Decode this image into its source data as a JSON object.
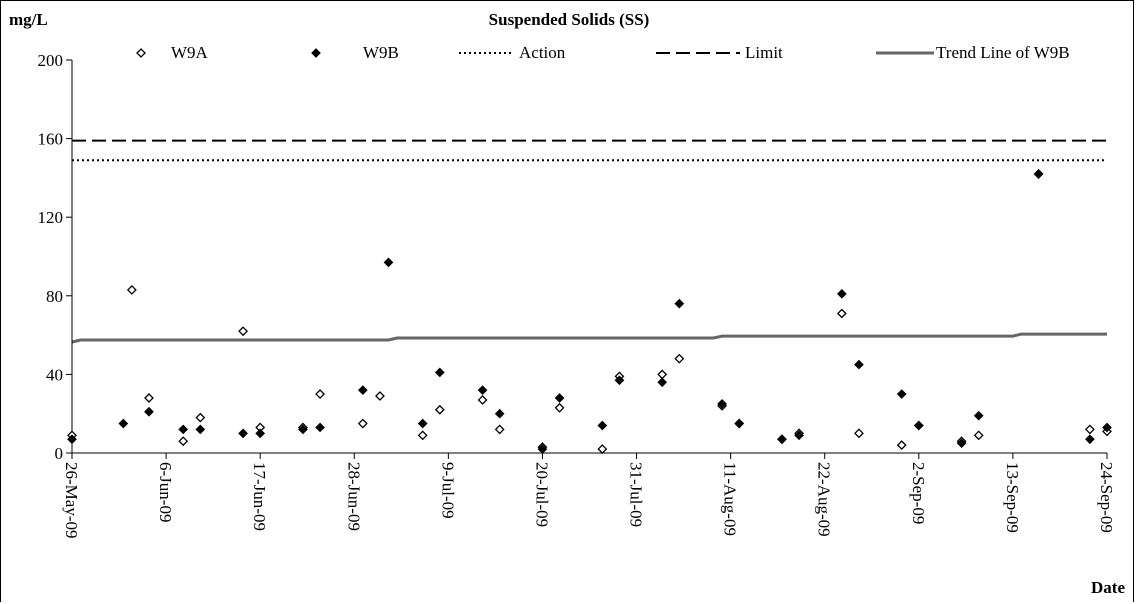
{
  "chart_data": {
    "type": "scatter",
    "title": "Suspended Solids (SS)",
    "ylabel": "mg/L",
    "xlabel": "Date",
    "ylim": [
      0,
      200
    ],
    "yticks": [
      "0",
      "40",
      "80",
      "120",
      "160",
      "200"
    ],
    "xlim": [
      "2009-05-26",
      "2009-09-24"
    ],
    "xticks": [
      "26-May-09",
      "6-Jun-09",
      "17-Jun-09",
      "28-Jun-09",
      "9-Jul-09",
      "20-Jul-09",
      "31-Jul-09",
      "11-Aug-09",
      "22-Aug-09",
      "2-Sep-09",
      "13-Sep-09",
      "24-Sep-09"
    ],
    "grid": false,
    "legend_position": "top",
    "series": [
      {
        "name": "W9A",
        "marker": "open-diamond",
        "points": [
          {
            "x": "2009-05-26",
            "y": 9
          },
          {
            "x": "2009-06-02",
            "y": 83
          },
          {
            "x": "2009-06-04",
            "y": 28
          },
          {
            "x": "2009-06-08",
            "y": 6
          },
          {
            "x": "2009-06-10",
            "y": 18
          },
          {
            "x": "2009-06-15",
            "y": 62
          },
          {
            "x": "2009-06-17",
            "y": 13
          },
          {
            "x": "2009-06-22",
            "y": 13
          },
          {
            "x": "2009-06-24",
            "y": 30
          },
          {
            "x": "2009-06-29",
            "y": 15
          },
          {
            "x": "2009-07-01",
            "y": 29
          },
          {
            "x": "2009-07-06",
            "y": 9
          },
          {
            "x": "2009-07-08",
            "y": 22
          },
          {
            "x": "2009-07-13",
            "y": 27
          },
          {
            "x": "2009-07-15",
            "y": 12
          },
          {
            "x": "2009-07-20",
            "y": 3
          },
          {
            "x": "2009-07-22",
            "y": 23
          },
          {
            "x": "2009-07-27",
            "y": 2
          },
          {
            "x": "2009-07-29",
            "y": 39
          },
          {
            "x": "2009-08-03",
            "y": 40
          },
          {
            "x": "2009-08-05",
            "y": 48
          },
          {
            "x": "2009-08-10",
            "y": 24
          },
          {
            "x": "2009-08-12",
            "y": 15
          },
          {
            "x": "2009-08-17",
            "y": 7
          },
          {
            "x": "2009-08-19",
            "y": 10
          },
          {
            "x": "2009-08-24",
            "y": 71
          },
          {
            "x": "2009-08-26",
            "y": 10
          },
          {
            "x": "2009-08-31",
            "y": 4
          },
          {
            "x": "2009-09-02",
            "y": 14
          },
          {
            "x": "2009-09-07",
            "y": 6
          },
          {
            "x": "2009-09-09",
            "y": 9
          },
          {
            "x": "2009-09-16",
            "y": 142
          },
          {
            "x": "2009-09-22",
            "y": 12
          },
          {
            "x": "2009-09-24",
            "y": 11
          }
        ]
      },
      {
        "name": "W9B",
        "marker": "filled-diamond",
        "points": [
          {
            "x": "2009-05-26",
            "y": 7
          },
          {
            "x": "2009-06-01",
            "y": 15
          },
          {
            "x": "2009-06-04",
            "y": 21
          },
          {
            "x": "2009-06-08",
            "y": 12
          },
          {
            "x": "2009-06-10",
            "y": 12
          },
          {
            "x": "2009-06-15",
            "y": 10
          },
          {
            "x": "2009-06-17",
            "y": 10
          },
          {
            "x": "2009-06-22",
            "y": 12
          },
          {
            "x": "2009-06-24",
            "y": 13
          },
          {
            "x": "2009-06-29",
            "y": 32
          },
          {
            "x": "2009-07-02",
            "y": 97
          },
          {
            "x": "2009-07-06",
            "y": 15
          },
          {
            "x": "2009-07-08",
            "y": 41
          },
          {
            "x": "2009-07-13",
            "y": 32
          },
          {
            "x": "2009-07-15",
            "y": 20
          },
          {
            "x": "2009-07-20",
            "y": 2
          },
          {
            "x": "2009-07-22",
            "y": 28
          },
          {
            "x": "2009-07-27",
            "y": 14
          },
          {
            "x": "2009-07-29",
            "y": 37
          },
          {
            "x": "2009-08-03",
            "y": 36
          },
          {
            "x": "2009-08-05",
            "y": 76
          },
          {
            "x": "2009-08-10",
            "y": 25
          },
          {
            "x": "2009-08-12",
            "y": 15
          },
          {
            "x": "2009-08-17",
            "y": 7
          },
          {
            "x": "2009-08-19",
            "y": 9
          },
          {
            "x": "2009-08-24",
            "y": 81
          },
          {
            "x": "2009-08-26",
            "y": 45
          },
          {
            "x": "2009-08-31",
            "y": 30
          },
          {
            "x": "2009-09-02",
            "y": 14
          },
          {
            "x": "2009-09-07",
            "y": 5
          },
          {
            "x": "2009-09-09",
            "y": 19
          },
          {
            "x": "2009-09-16",
            "y": 142
          },
          {
            "x": "2009-09-22",
            "y": 7
          },
          {
            "x": "2009-09-24",
            "y": 13
          }
        ]
      },
      {
        "name": "Action",
        "style": "dotted",
        "line": [
          {
            "x": "2009-05-26",
            "y": 149
          },
          {
            "x": "2009-09-24",
            "y": 149
          }
        ]
      },
      {
        "name": "Limit",
        "style": "dashed",
        "line": [
          {
            "x": "2009-05-26",
            "y": 159
          },
          {
            "x": "2009-09-24",
            "y": 159
          }
        ]
      },
      {
        "name": "Trend Line of W9B",
        "style": "solid",
        "color": "#666666",
        "line": [
          {
            "x": "2009-05-26",
            "y": 56.5
          },
          {
            "x": "2009-05-27",
            "y": 57.5
          },
          {
            "x": "2009-07-02",
            "y": 57.5
          },
          {
            "x": "2009-07-03",
            "y": 58.5
          },
          {
            "x": "2009-08-09",
            "y": 58.5
          },
          {
            "x": "2009-08-10",
            "y": 59.5
          },
          {
            "x": "2009-09-13",
            "y": 59.5
          },
          {
            "x": "2009-09-14",
            "y": 60.5
          },
          {
            "x": "2009-09-24",
            "y": 60.5
          }
        ]
      }
    ]
  }
}
